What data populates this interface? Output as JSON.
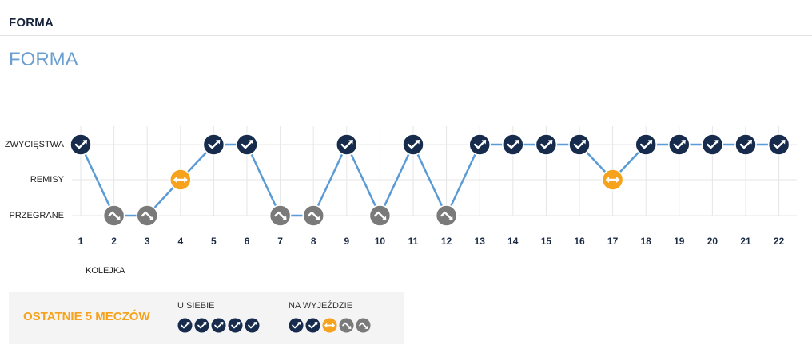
{
  "header": {
    "title": "FORMA"
  },
  "section": {
    "title": "FORMA"
  },
  "colors": {
    "title": "#6b9fd1",
    "accent": "#f6a21c"
  },
  "icon_colors": {
    "win-icon": "#172b4d",
    "draw-icon": "#f6a21c",
    "loss-icon": "#7a7a7a"
  },
  "chart_data": {
    "type": "line",
    "x": [
      1,
      2,
      3,
      4,
      5,
      6,
      7,
      8,
      9,
      10,
      11,
      12,
      13,
      14,
      15,
      16,
      17,
      18,
      19,
      20,
      21,
      22
    ],
    "y_categories": [
      "ZWYCIĘSTWA",
      "REMISY",
      "PRZEGRANE"
    ],
    "values": [
      "ZWYCIĘSTWA",
      "PRZEGRANE",
      "PRZEGRANE",
      "REMISY",
      "ZWYCIĘSTWA",
      "ZWYCIĘSTWA",
      "PRZEGRANE",
      "PRZEGRANE",
      "ZWYCIĘSTWA",
      "PRZEGRANE",
      "ZWYCIĘSTWA",
      "PRZEGRANE",
      "ZWYCIĘSTWA",
      "ZWYCIĘSTWA",
      "ZWYCIĘSTWA",
      "ZWYCIĘSTWA",
      "REMISY",
      "ZWYCIĘSTWA",
      "ZWYCIĘSTWA",
      "ZWYCIĘSTWA",
      "ZWYCIĘSTWA",
      "ZWYCIĘSTWA"
    ],
    "marker_icons": {
      "ZWYCIĘSTWA": "win-icon",
      "REMISY": "draw-icon",
      "PRZEGRANE": "loss-icon"
    },
    "xlabel": "KOLEJKA",
    "grid": true,
    "line_color": "#5b9bd5"
  },
  "last5": {
    "title": "OSTATNIE 5 MECZÓW",
    "home": {
      "label": "U SIEBIE",
      "icons": [
        "win-icon",
        "win-icon",
        "win-icon",
        "win-icon",
        "win-icon"
      ]
    },
    "away": {
      "label": "NA WYJEŹDZIE",
      "icons": [
        "win-icon",
        "win-icon",
        "draw-icon",
        "loss-icon",
        "loss-icon"
      ]
    }
  }
}
